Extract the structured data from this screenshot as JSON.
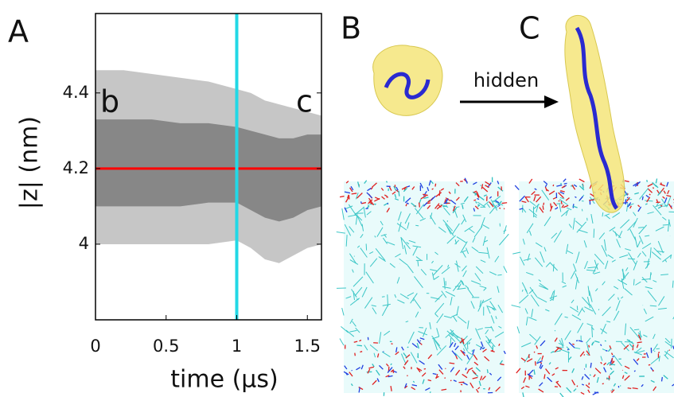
{
  "panel_labels": [
    "A",
    "B",
    "C"
  ],
  "arrow_label": "hidden",
  "chart_data": {
    "type": "band",
    "xlabel": "time (μs)",
    "ylabel": "|z| (nm)",
    "xlim": [
      0,
      1.6
    ],
    "ylim": [
      3.8,
      4.61
    ],
    "xticks": [
      0,
      0.5,
      1,
      1.5
    ],
    "yticks": [
      4,
      4.2,
      4.4
    ],
    "x": [
      0,
      0.2,
      0.4,
      0.6,
      0.8,
      1.0,
      1.1,
      1.2,
      1.3,
      1.4,
      1.5,
      1.6
    ],
    "outer_high": [
      4.46,
      4.46,
      4.45,
      4.44,
      4.43,
      4.41,
      4.4,
      4.38,
      4.37,
      4.36,
      4.35,
      4.34
    ],
    "outer_low": [
      4.0,
      4.0,
      4.0,
      4.0,
      4.0,
      4.01,
      3.99,
      3.96,
      3.95,
      3.97,
      3.99,
      4.0
    ],
    "core_high": [
      4.33,
      4.33,
      4.33,
      4.32,
      4.32,
      4.31,
      4.3,
      4.29,
      4.28,
      4.28,
      4.29,
      4.29
    ],
    "core_low": [
      4.1,
      4.1,
      4.1,
      4.1,
      4.11,
      4.11,
      4.09,
      4.07,
      4.06,
      4.07,
      4.09,
      4.1
    ],
    "color": "#808080",
    "hline": {
      "value": 4.2,
      "color": "#ff0000"
    },
    "vline": {
      "value": 1.0,
      "color": "#22d8e6"
    },
    "annotations": [
      "b",
      "c"
    ]
  }
}
